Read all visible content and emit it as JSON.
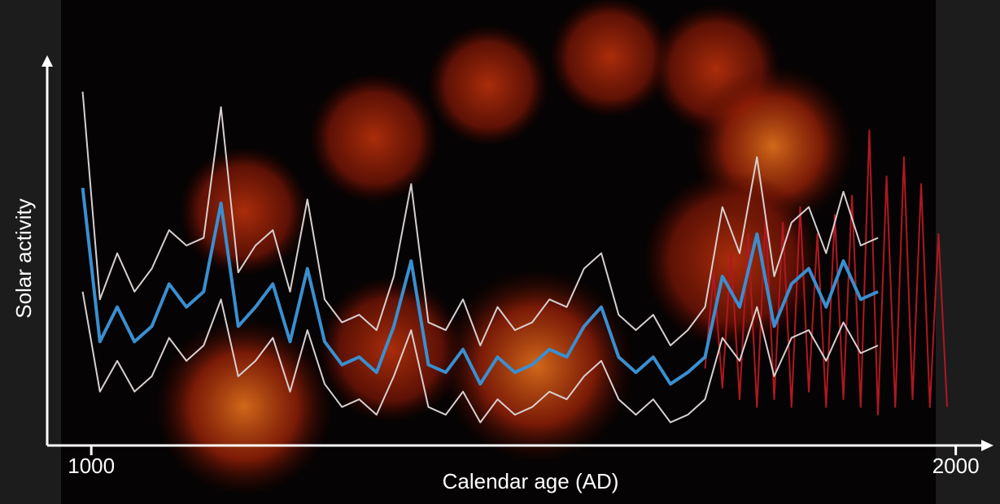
{
  "chart_data": {
    "type": "line",
    "y_label": "Solar activity",
    "x_label": "Calendar age (AD)",
    "xlim": [
      949,
      2038
    ],
    "xticks": [
      1000,
      2000
    ],
    "ylim": [
      0,
      100
    ],
    "x": [
      990,
      1010,
      1030,
      1050,
      1070,
      1090,
      1110,
      1130,
      1150,
      1170,
      1190,
      1210,
      1230,
      1250,
      1270,
      1290,
      1310,
      1330,
      1350,
      1370,
      1390,
      1410,
      1430,
      1450,
      1470,
      1490,
      1510,
      1530,
      1550,
      1570,
      1590,
      1610,
      1630,
      1650,
      1670,
      1690,
      1710,
      1730,
      1750,
      1770,
      1790,
      1810,
      1830,
      1850,
      1870,
      1890,
      1910
    ],
    "series": [
      {
        "color": "#b01820",
        "x": [
          1710,
          1720,
          1730,
          1740,
          1750,
          1760,
          1770,
          1780,
          1790,
          1800,
          1810,
          1820,
          1830,
          1840,
          1850,
          1860,
          1870,
          1880,
          1890,
          1900,
          1910,
          1920,
          1930,
          1940,
          1950,
          1960,
          1970,
          1980,
          1990
        ],
        "values": [
          20,
          45,
          15,
          50,
          12,
          55,
          10,
          60,
          12,
          58,
          10,
          62,
          14,
          55,
          10,
          60,
          12,
          65,
          10,
          82,
          8,
          70,
          10,
          75,
          12,
          68,
          10,
          55,
          10
        ]
      },
      {
        "color": "#d8d0d0",
        "values": [
          92,
          38,
          50,
          40,
          46,
          56,
          52,
          54,
          88,
          45,
          52,
          56,
          40,
          64,
          38,
          32,
          34,
          30,
          44,
          68,
          32,
          30,
          38,
          26,
          36,
          30,
          32,
          38,
          36,
          46,
          50,
          34,
          30,
          34,
          26,
          30,
          36,
          62,
          50,
          75,
          44,
          58,
          62,
          50,
          66,
          52,
          54
        ]
      },
      {
        "color": "#d8d0d0",
        "values": [
          40,
          14,
          22,
          14,
          18,
          28,
          22,
          26,
          38,
          18,
          22,
          28,
          14,
          30,
          16,
          10,
          12,
          8,
          18,
          30,
          10,
          8,
          14,
          6,
          12,
          8,
          10,
          14,
          12,
          18,
          22,
          12,
          8,
          12,
          6,
          8,
          12,
          28,
          22,
          36,
          18,
          28,
          30,
          22,
          32,
          24,
          26
        ]
      },
      {
        "color": "#3a8fd0",
        "values": [
          67,
          27,
          36,
          27,
          31,
          42,
          36,
          40,
          63,
          31,
          36,
          42,
          27,
          46,
          27,
          21,
          23,
          19,
          31,
          48,
          21,
          19,
          25,
          16,
          23,
          19,
          21,
          25,
          23,
          31,
          36,
          23,
          19,
          23,
          16,
          19,
          23,
          44,
          36,
          55,
          31,
          42,
          46,
          36,
          48,
          38,
          40
        ]
      }
    ]
  }
}
